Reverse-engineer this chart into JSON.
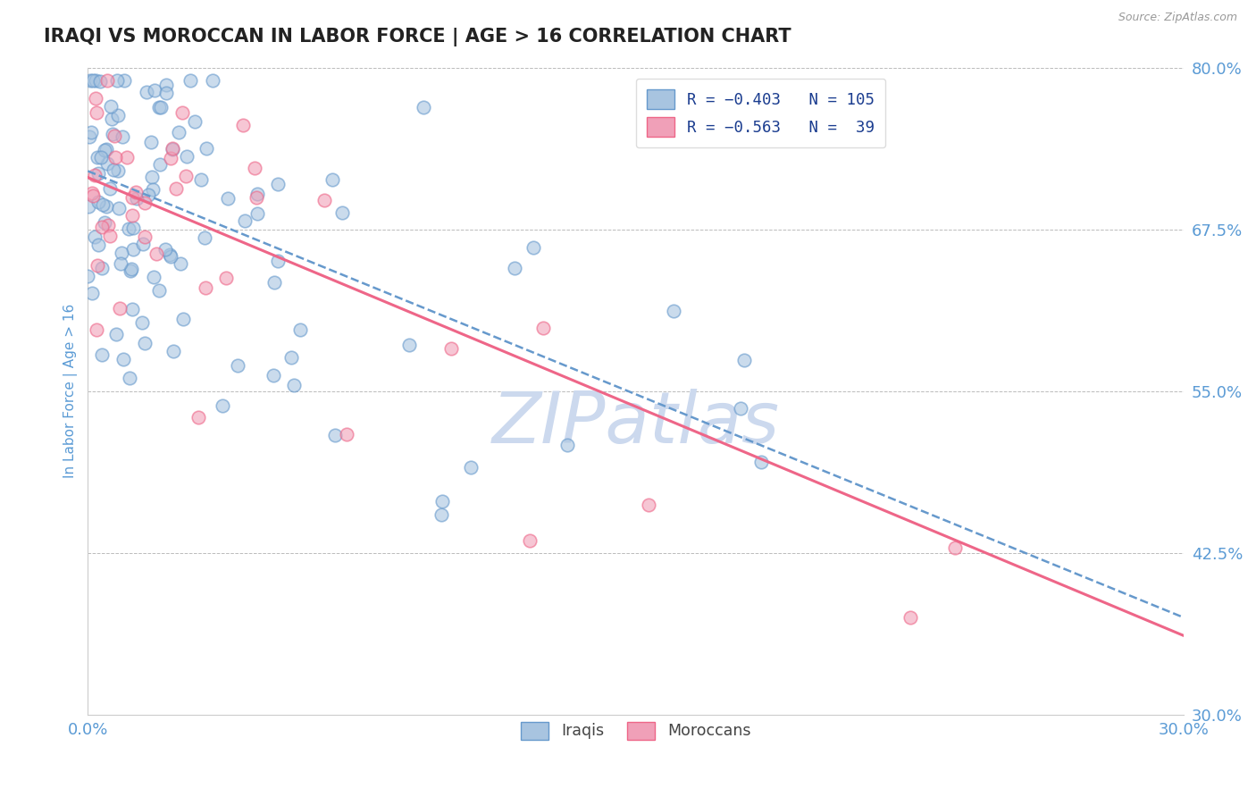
{
  "title": "IRAQI VS MOROCCAN IN LABOR FORCE | AGE > 16 CORRELATION CHART",
  "source_text": "Source: ZipAtlas.com",
  "ylabel": "In Labor Force | Age > 16",
  "xlim": [
    0.0,
    0.3
  ],
  "ylim": [
    0.3,
    0.8
  ],
  "yticks": [
    0.3,
    0.425,
    0.55,
    0.675,
    0.8
  ],
  "ytick_labels": [
    "30.0%",
    "42.5%",
    "55.0%",
    "67.5%",
    "80.0%"
  ],
  "xtick_labels": [
    "0.0%",
    "30.0%"
  ],
  "xticks": [
    0.0,
    0.3
  ],
  "n_iraqi": 105,
  "n_moroccan": 39,
  "iraqi_color": "#a8c4e0",
  "moroccan_color": "#f0a0b8",
  "iraqi_line_color": "#6699cc",
  "moroccan_line_color": "#ee6688",
  "iraqi_line_dash": true,
  "watermark_color": "#ccd9ee",
  "background_color": "#ffffff",
  "title_color": "#222222",
  "axis_label_color": "#5b9bd5",
  "tick_color": "#5b9bd5",
  "grid_color": "#bbbbbb",
  "seed": 7,
  "iraqi_intercept": 0.72,
  "iraqi_slope": -1.15,
  "moroccan_intercept": 0.715,
  "moroccan_slope": -1.18
}
